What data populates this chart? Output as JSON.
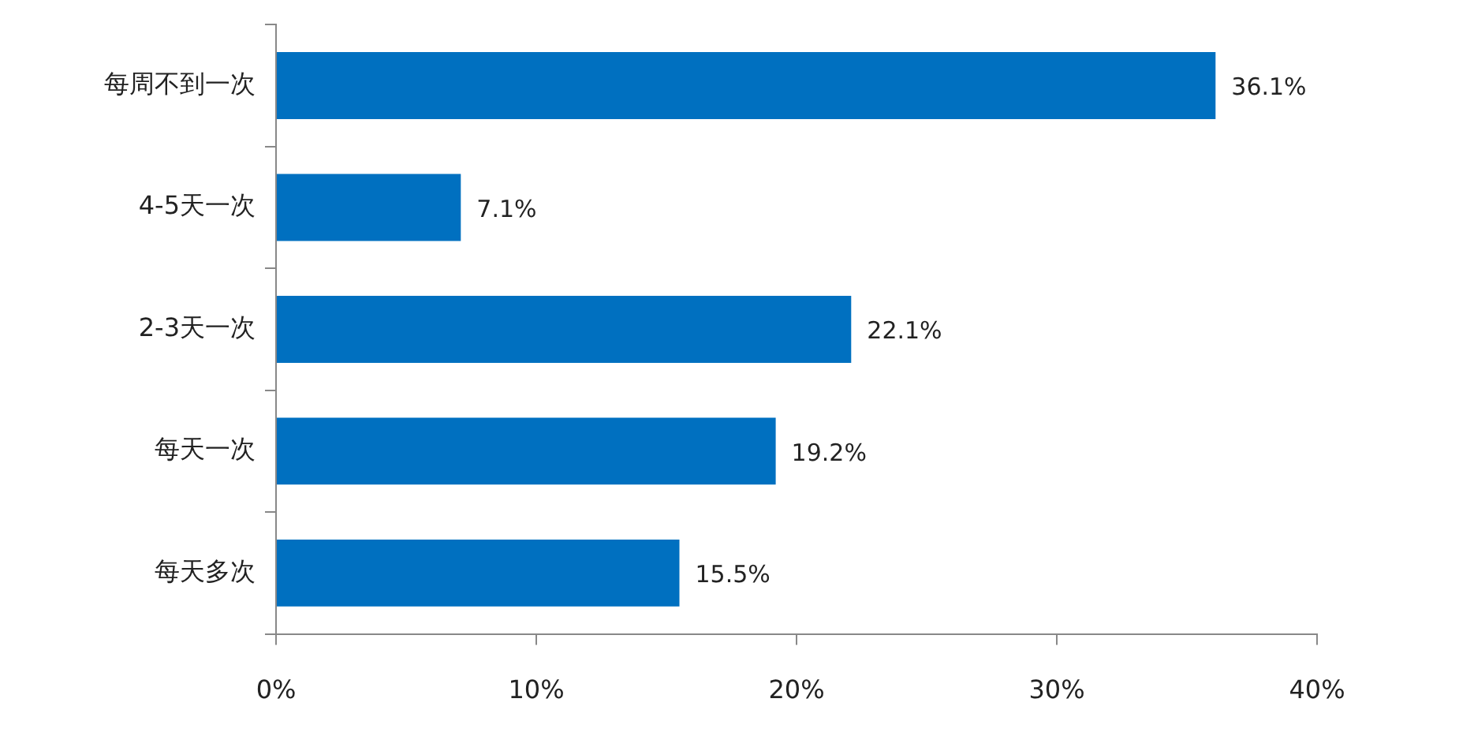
{
  "chart_data": {
    "type": "bar",
    "orientation": "horizontal",
    "categories": [
      "每周不到一次",
      "4-5天一次",
      "2-3天一次",
      "每天一次",
      "每天多次"
    ],
    "values": [
      36.1,
      7.1,
      22.1,
      19.2,
      15.5
    ],
    "value_labels": [
      "36.1%",
      "7.1%",
      "22.1%",
      "19.2%",
      "15.5%"
    ],
    "color": "#0070c0",
    "xlim": [
      0,
      40
    ],
    "xticks": [
      {
        "value": 0,
        "label": "0%"
      },
      {
        "value": 10,
        "label": "10%"
      },
      {
        "value": 20,
        "label": "20%"
      },
      {
        "value": 30,
        "label": "30%"
      },
      {
        "value": 40,
        "label": "40%"
      }
    ],
    "grid": false,
    "legend": false
  }
}
